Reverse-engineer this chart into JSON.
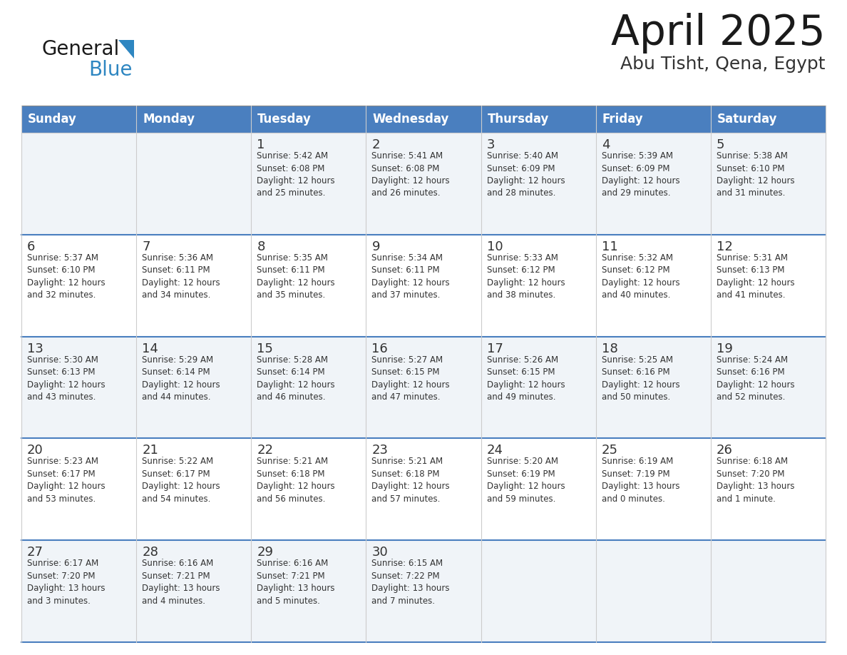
{
  "title": "April 2025",
  "subtitle": "Abu Tisht, Qena, Egypt",
  "header_color": "#4A7FBF",
  "header_text_color": "#FFFFFF",
  "cell_bg_even": "#F0F4F8",
  "cell_bg_odd": "#FFFFFF",
  "divider_color": "#4A7FBF",
  "text_color": "#333333",
  "days_of_week": [
    "Sunday",
    "Monday",
    "Tuesday",
    "Wednesday",
    "Thursday",
    "Friday",
    "Saturday"
  ],
  "weeks": [
    [
      {
        "day": "",
        "info": ""
      },
      {
        "day": "",
        "info": ""
      },
      {
        "day": "1",
        "info": "Sunrise: 5:42 AM\nSunset: 6:08 PM\nDaylight: 12 hours\nand 25 minutes."
      },
      {
        "day": "2",
        "info": "Sunrise: 5:41 AM\nSunset: 6:08 PM\nDaylight: 12 hours\nand 26 minutes."
      },
      {
        "day": "3",
        "info": "Sunrise: 5:40 AM\nSunset: 6:09 PM\nDaylight: 12 hours\nand 28 minutes."
      },
      {
        "day": "4",
        "info": "Sunrise: 5:39 AM\nSunset: 6:09 PM\nDaylight: 12 hours\nand 29 minutes."
      },
      {
        "day": "5",
        "info": "Sunrise: 5:38 AM\nSunset: 6:10 PM\nDaylight: 12 hours\nand 31 minutes."
      }
    ],
    [
      {
        "day": "6",
        "info": "Sunrise: 5:37 AM\nSunset: 6:10 PM\nDaylight: 12 hours\nand 32 minutes."
      },
      {
        "day": "7",
        "info": "Sunrise: 5:36 AM\nSunset: 6:11 PM\nDaylight: 12 hours\nand 34 minutes."
      },
      {
        "day": "8",
        "info": "Sunrise: 5:35 AM\nSunset: 6:11 PM\nDaylight: 12 hours\nand 35 minutes."
      },
      {
        "day": "9",
        "info": "Sunrise: 5:34 AM\nSunset: 6:11 PM\nDaylight: 12 hours\nand 37 minutes."
      },
      {
        "day": "10",
        "info": "Sunrise: 5:33 AM\nSunset: 6:12 PM\nDaylight: 12 hours\nand 38 minutes."
      },
      {
        "day": "11",
        "info": "Sunrise: 5:32 AM\nSunset: 6:12 PM\nDaylight: 12 hours\nand 40 minutes."
      },
      {
        "day": "12",
        "info": "Sunrise: 5:31 AM\nSunset: 6:13 PM\nDaylight: 12 hours\nand 41 minutes."
      }
    ],
    [
      {
        "day": "13",
        "info": "Sunrise: 5:30 AM\nSunset: 6:13 PM\nDaylight: 12 hours\nand 43 minutes."
      },
      {
        "day": "14",
        "info": "Sunrise: 5:29 AM\nSunset: 6:14 PM\nDaylight: 12 hours\nand 44 minutes."
      },
      {
        "day": "15",
        "info": "Sunrise: 5:28 AM\nSunset: 6:14 PM\nDaylight: 12 hours\nand 46 minutes."
      },
      {
        "day": "16",
        "info": "Sunrise: 5:27 AM\nSunset: 6:15 PM\nDaylight: 12 hours\nand 47 minutes."
      },
      {
        "day": "17",
        "info": "Sunrise: 5:26 AM\nSunset: 6:15 PM\nDaylight: 12 hours\nand 49 minutes."
      },
      {
        "day": "18",
        "info": "Sunrise: 5:25 AM\nSunset: 6:16 PM\nDaylight: 12 hours\nand 50 minutes."
      },
      {
        "day": "19",
        "info": "Sunrise: 5:24 AM\nSunset: 6:16 PM\nDaylight: 12 hours\nand 52 minutes."
      }
    ],
    [
      {
        "day": "20",
        "info": "Sunrise: 5:23 AM\nSunset: 6:17 PM\nDaylight: 12 hours\nand 53 minutes."
      },
      {
        "day": "21",
        "info": "Sunrise: 5:22 AM\nSunset: 6:17 PM\nDaylight: 12 hours\nand 54 minutes."
      },
      {
        "day": "22",
        "info": "Sunrise: 5:21 AM\nSunset: 6:18 PM\nDaylight: 12 hours\nand 56 minutes."
      },
      {
        "day": "23",
        "info": "Sunrise: 5:21 AM\nSunset: 6:18 PM\nDaylight: 12 hours\nand 57 minutes."
      },
      {
        "day": "24",
        "info": "Sunrise: 5:20 AM\nSunset: 6:19 PM\nDaylight: 12 hours\nand 59 minutes."
      },
      {
        "day": "25",
        "info": "Sunrise: 6:19 AM\nSunset: 7:19 PM\nDaylight: 13 hours\nand 0 minutes."
      },
      {
        "day": "26",
        "info": "Sunrise: 6:18 AM\nSunset: 7:20 PM\nDaylight: 13 hours\nand 1 minute."
      }
    ],
    [
      {
        "day": "27",
        "info": "Sunrise: 6:17 AM\nSunset: 7:20 PM\nDaylight: 13 hours\nand 3 minutes."
      },
      {
        "day": "28",
        "info": "Sunrise: 6:16 AM\nSunset: 7:21 PM\nDaylight: 13 hours\nand 4 minutes."
      },
      {
        "day": "29",
        "info": "Sunrise: 6:16 AM\nSunset: 7:21 PM\nDaylight: 13 hours\nand 5 minutes."
      },
      {
        "day": "30",
        "info": "Sunrise: 6:15 AM\nSunset: 7:22 PM\nDaylight: 13 hours\nand 7 minutes."
      },
      {
        "day": "",
        "info": ""
      },
      {
        "day": "",
        "info": ""
      },
      {
        "day": "",
        "info": ""
      }
    ]
  ],
  "logo_general_color": "#1a1a1a",
  "logo_blue_color": "#2E86C1",
  "logo_triangle_color": "#2E86C1",
  "title_color": "#1a1a1a",
  "subtitle_color": "#333333"
}
